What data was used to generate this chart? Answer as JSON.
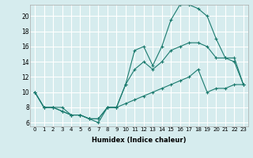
{
  "xlabel": "Humidex (Indice chaleur)",
  "bg_color": "#d6ecee",
  "grid_color": "#ffffff",
  "line_color": "#1a7a6e",
  "xlim": [
    -0.5,
    23.5
  ],
  "ylim": [
    5.5,
    21.5
  ],
  "xticks": [
    0,
    1,
    2,
    3,
    4,
    5,
    6,
    7,
    8,
    9,
    10,
    11,
    12,
    13,
    14,
    15,
    16,
    17,
    18,
    19,
    20,
    21,
    22,
    23
  ],
  "yticks": [
    6,
    8,
    10,
    12,
    14,
    16,
    18,
    20
  ],
  "line1_x": [
    0,
    1,
    2,
    3,
    4,
    5,
    6,
    7,
    8,
    9,
    10,
    11,
    12,
    13,
    14,
    15,
    16,
    17,
    18,
    19,
    20,
    21,
    22,
    23
  ],
  "line1_y": [
    10,
    8,
    8,
    8,
    7,
    7,
    6.5,
    6,
    8,
    8,
    11,
    15.5,
    16,
    13.5,
    16,
    19.5,
    21.5,
    21.5,
    21,
    20,
    17,
    14.5,
    14,
    11
  ],
  "line2_x": [
    0,
    1,
    2,
    3,
    4,
    5,
    6,
    7,
    8,
    9,
    10,
    11,
    12,
    13,
    14,
    15,
    16,
    17,
    18,
    19,
    20,
    21,
    22,
    23
  ],
  "line2_y": [
    10,
    8,
    8,
    7.5,
    7,
    7,
    6.5,
    6.5,
    8,
    8,
    11,
    13,
    14,
    13,
    14,
    15.5,
    16,
    16.5,
    16.5,
    16,
    14.5,
    14.5,
    14.5,
    11
  ],
  "line3_x": [
    0,
    1,
    2,
    3,
    4,
    5,
    6,
    7,
    8,
    9,
    10,
    11,
    12,
    13,
    14,
    15,
    16,
    17,
    18,
    19,
    20,
    21,
    22,
    23
  ],
  "line3_y": [
    10,
    8,
    8,
    7.5,
    7,
    7,
    6.5,
    6.5,
    8,
    8,
    8.5,
    9,
    9.5,
    10,
    10.5,
    11,
    11.5,
    12,
    13,
    10,
    10.5,
    10.5,
    11,
    11
  ]
}
